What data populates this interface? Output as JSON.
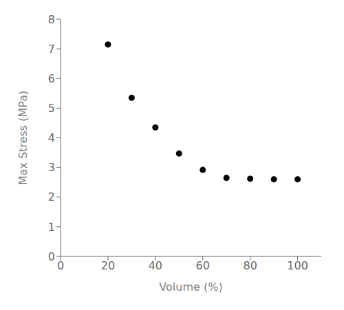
{
  "chart_data": {
    "type": "scatter",
    "x": [
      20,
      30,
      40,
      50,
      60,
      70,
      80,
      90,
      100
    ],
    "values": [
      7.15,
      5.35,
      4.35,
      3.47,
      2.92,
      2.65,
      2.62,
      2.6,
      2.6
    ],
    "xlabel": "Volume (%)",
    "ylabel": "Max Stress (MPa)",
    "xlim": [
      0,
      110
    ],
    "ylim": [
      0,
      8
    ],
    "xticks": [
      0,
      20,
      40,
      60,
      80,
      100
    ],
    "yticks": [
      0,
      1,
      2,
      3,
      4,
      5,
      6,
      7,
      8
    ],
    "color": "black",
    "marker": "circle",
    "grid": false
  }
}
